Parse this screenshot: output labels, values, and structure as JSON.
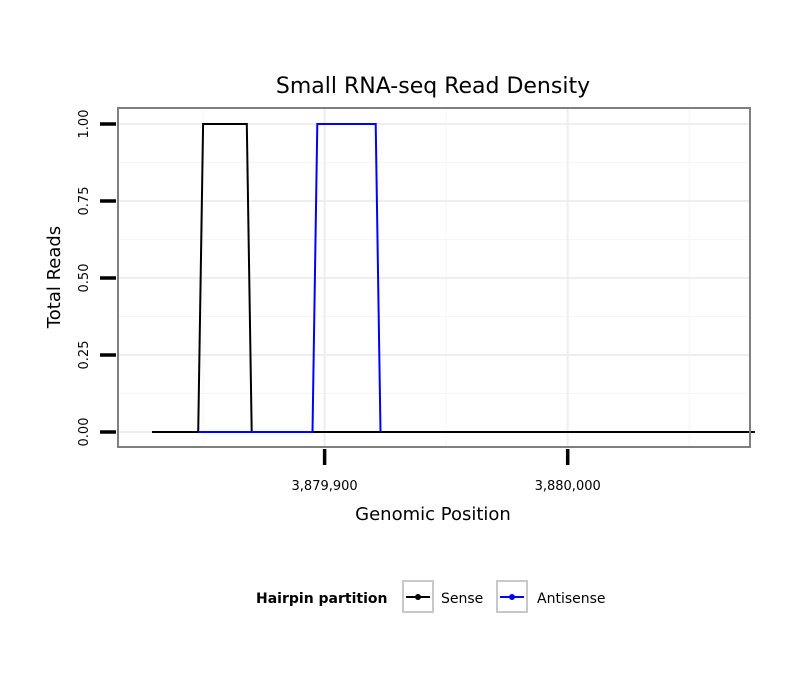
{
  "chart_data": {
    "type": "line",
    "title": "Small RNA-seq Read Density",
    "xlabel": "Genomic Position",
    "ylabel": "Total Reads",
    "xlim": [
      3879815,
      3880075
    ],
    "ylim": [
      0,
      1
    ],
    "x_ticks": [
      3879900,
      3880000
    ],
    "x_tick_labels": [
      "3,879,900",
      "3,880,000"
    ],
    "y_ticks": [
      0,
      0.25,
      0.5,
      0.75,
      1
    ],
    "y_tick_labels": [
      "0.00",
      "0.25",
      "0.50",
      "0.75",
      "1.00"
    ],
    "grid": true,
    "legend": {
      "title": "Hairpin partition",
      "position": "bottom",
      "entries": [
        "Sense",
        "Antisense"
      ]
    },
    "series": [
      {
        "name": "Sense",
        "color": "#000000",
        "x": [
          3879829,
          3879848,
          3879850,
          3879868,
          3879870,
          3880077
        ],
        "y": [
          0,
          0,
          1,
          1,
          0,
          0
        ]
      },
      {
        "name": "Antisense",
        "color": "#0000ff",
        "x": [
          3879848,
          3879870,
          3879895,
          3879897,
          3879921,
          3879923
        ],
        "y": [
          0,
          0,
          0,
          1,
          1,
          0
        ]
      }
    ]
  }
}
